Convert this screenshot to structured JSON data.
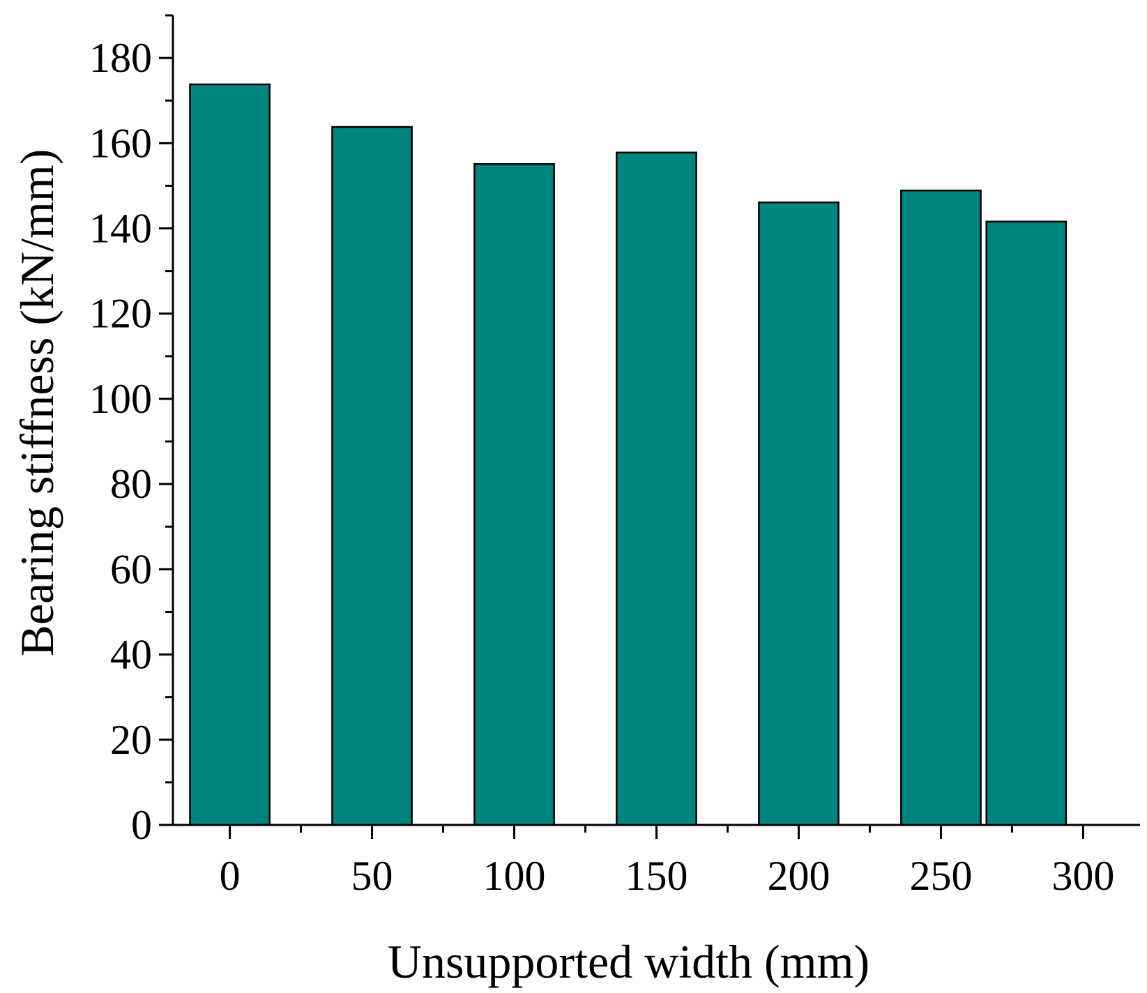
{
  "chart_data": {
    "type": "bar",
    "title": "",
    "xlabel": "Unsupported width (mm)",
    "ylabel": "Bearing stiffness (kN/mm)",
    "x": [
      0,
      50,
      100,
      150,
      200,
      250,
      280
    ],
    "values": [
      173.8,
      163.8,
      155.1,
      157.8,
      146.1,
      148.9,
      141.6
    ],
    "bar_width": 28,
    "xlim": [
      -20,
      320
    ],
    "ylim": [
      0,
      190
    ],
    "xticks": [
      0,
      50,
      100,
      150,
      200,
      250,
      300
    ],
    "xtick_labels": [
      "0",
      "50",
      "100",
      "150",
      "200",
      "250",
      "300"
    ],
    "yticks": [
      0,
      20,
      40,
      60,
      80,
      100,
      120,
      140,
      160,
      180
    ],
    "ytick_labels": [
      "0",
      "20",
      "40",
      "60",
      "80",
      "100",
      "120",
      "140",
      "160",
      "180"
    ],
    "y_minor_step": 10,
    "x_minor_step": 25,
    "grid": false,
    "legend": "none",
    "colors": {
      "bar_fill": "#008580",
      "bar_stroke": "#000000",
      "axis": "#000000"
    }
  }
}
